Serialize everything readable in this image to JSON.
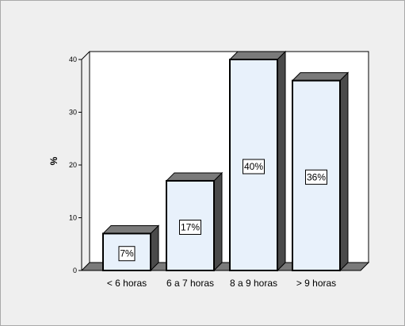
{
  "chart_data": {
    "type": "bar",
    "categories": [
      "< 6 horas",
      "6 a 7 horas",
      "8 a 9  horas",
      "> 9 horas"
    ],
    "values": [
      7,
      17,
      40,
      36
    ],
    "data_labels": [
      "7%",
      "17%",
      "40%",
      "36%"
    ],
    "title": "",
    "xlabel": "",
    "ylabel": "%",
    "ylim": [
      0,
      40
    ],
    "yticks": [
      0,
      10,
      20,
      30,
      40
    ],
    "grid": false,
    "legend": "none",
    "style": "3d",
    "colors": {
      "bar_face": "#e8f1fb",
      "bar_top": "#7a7a7a",
      "bar_side": "#4a4a4a",
      "plot_back": "#ffffff",
      "floor": "#7a7a7a",
      "background": "#efefef"
    }
  }
}
